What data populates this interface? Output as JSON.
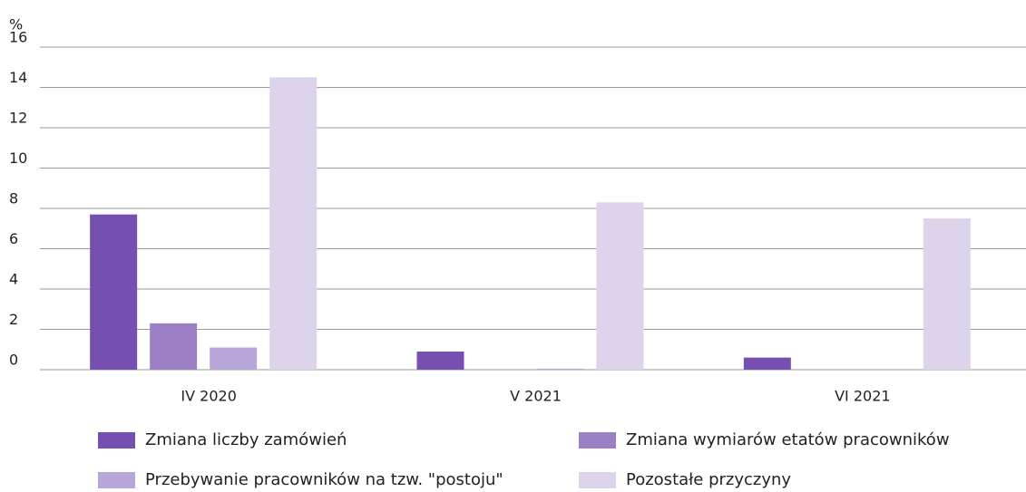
{
  "chart_data": {
    "type": "bar",
    "y_label": "%",
    "categories": [
      "IV 2020",
      "V 2021",
      "VI 2021"
    ],
    "series": [
      {
        "name": "Zmiana liczby zamówień",
        "color": "#7550b0",
        "values": [
          7.7,
          0.9,
          0.6
        ]
      },
      {
        "name": "Zmiana wymiarów etatów pracowników",
        "color": "#9b80c4",
        "values": [
          2.3,
          0,
          0
        ]
      },
      {
        "name": "Przebywanie pracowników na tzw. \"postoju\"",
        "color": "#b9a6d8",
        "values": [
          1.1,
          0.05,
          0
        ]
      },
      {
        "name": "Pozostałe przyczyny",
        "color": "#ddd3ea",
        "values": [
          14.5,
          8.3,
          7.5
        ]
      }
    ],
    "ylim": [
      0,
      16
    ],
    "yticks": [
      0,
      2,
      4,
      6,
      8,
      10,
      12,
      14,
      16
    ],
    "grid": true,
    "legend": "bottom"
  }
}
